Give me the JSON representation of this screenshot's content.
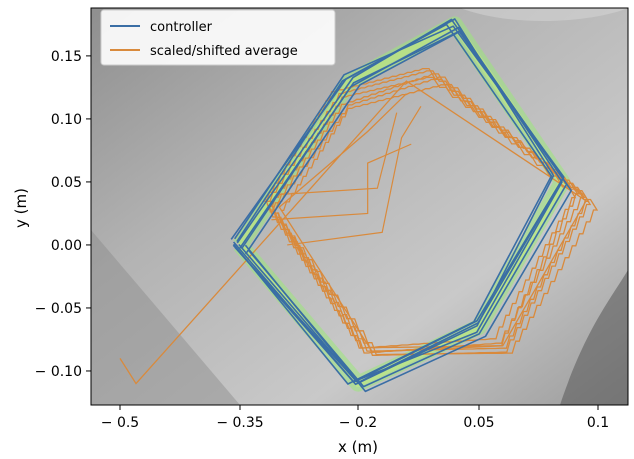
{
  "chart_data": {
    "type": "line",
    "xlabel": "x (m)",
    "ylabel": "y (m)",
    "xlim": [
      -0.56,
      0.115
    ],
    "ylim": [
      -0.127,
      0.188
    ],
    "grid": false,
    "background": "photo-overlay",
    "legend_position": "top-left",
    "x_ticks": [
      {
        "value": -0.5,
        "label": "− 0.5"
      },
      {
        "value": -0.35,
        "label": "− 0.35"
      },
      {
        "value": -0.2,
        "label": "− 0.2"
      },
      {
        "value": 0.05,
        "label": "0.05"
      },
      {
        "value": 0.1,
        "label": "0.1"
      }
    ],
    "y_ticks": [
      {
        "value": 0.15,
        "label": "0.15"
      },
      {
        "value": 0.1,
        "label": "0.10"
      },
      {
        "value": 0.05,
        "label": "0.05"
      },
      {
        "value": 0.0,
        "label": "0.00"
      },
      {
        "value": -0.05,
        "label": "− 0.05"
      },
      {
        "value": -0.1,
        "label": "− 0.10"
      }
    ],
    "series": [
      {
        "name": "controller",
        "color": "#3a6ea5",
        "x": [
          -0.35,
          -0.21,
          0.0,
          0.085,
          0.05,
          -0.2,
          -0.35
        ],
        "y": [
          0.0,
          0.13,
          0.175,
          0.05,
          -0.065,
          -0.11,
          0.0
        ]
      },
      {
        "name": "scaled/shifted average",
        "color": "#d98a3c",
        "x": [
          -0.5,
          -0.48,
          -0.31,
          -0.1,
          0.095,
          0.06,
          -0.17,
          -0.3,
          -0.18,
          -0.1
        ],
        "y": [
          -0.09,
          -0.11,
          0.01,
          0.13,
          0.035,
          -0.08,
          -0.085,
          0.03,
          0.09,
          0.12
        ]
      }
    ]
  }
}
